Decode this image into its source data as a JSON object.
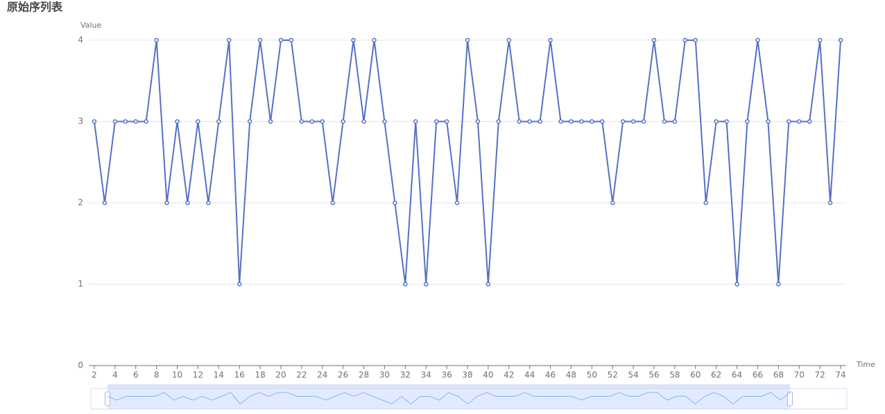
{
  "chart_data": {
    "type": "line",
    "title": "原始序列表",
    "y_label": "Value",
    "x_label": "Time",
    "x": [
      2,
      3,
      4,
      5,
      6,
      7,
      8,
      9,
      10,
      11,
      12,
      13,
      14,
      15,
      16,
      17,
      18,
      19,
      20,
      21,
      22,
      23,
      24,
      25,
      26,
      27,
      28,
      29,
      30,
      31,
      32,
      33,
      34,
      35,
      36,
      37,
      38,
      39,
      40,
      41,
      42,
      43,
      44,
      45,
      46,
      47,
      48,
      49,
      50,
      51,
      52,
      53,
      54,
      55,
      56,
      57,
      58,
      59,
      60,
      61,
      62,
      63,
      64,
      65,
      66,
      67,
      68,
      69,
      70,
      71,
      72,
      73,
      74
    ],
    "series": [
      {
        "color": "#5470c6",
        "values": [
          3,
          2,
          3,
          3,
          3,
          3,
          4,
          2,
          3,
          2,
          3,
          2,
          3,
          4,
          1,
          3,
          4,
          3,
          4,
          4,
          3,
          3,
          3,
          2,
          3,
          4,
          3,
          4,
          3,
          2,
          1,
          3,
          1,
          3,
          3,
          2,
          4,
          3,
          1,
          3,
          4,
          3,
          3,
          3,
          4,
          3,
          3,
          3,
          3,
          3,
          2,
          3,
          3,
          3,
          4,
          3,
          3,
          4,
          4,
          2,
          3,
          3,
          1,
          3,
          4,
          3,
          1,
          3,
          3,
          3,
          4,
          2,
          4
        ]
      }
    ],
    "xlim": [
      1.5,
      74.5
    ],
    "xticks": [
      2,
      4,
      6,
      8,
      10,
      12,
      14,
      16,
      18,
      20,
      22,
      24,
      26,
      28,
      30,
      32,
      34,
      36,
      38,
      40,
      42,
      44,
      46,
      48,
      50,
      52,
      54,
      56,
      58,
      60,
      62,
      64,
      66,
      68,
      70,
      72,
      74
    ],
    "ylim": [
      0,
      4
    ],
    "yticks": [
      0,
      1,
      2,
      3,
      4
    ],
    "grid": true
  }
}
